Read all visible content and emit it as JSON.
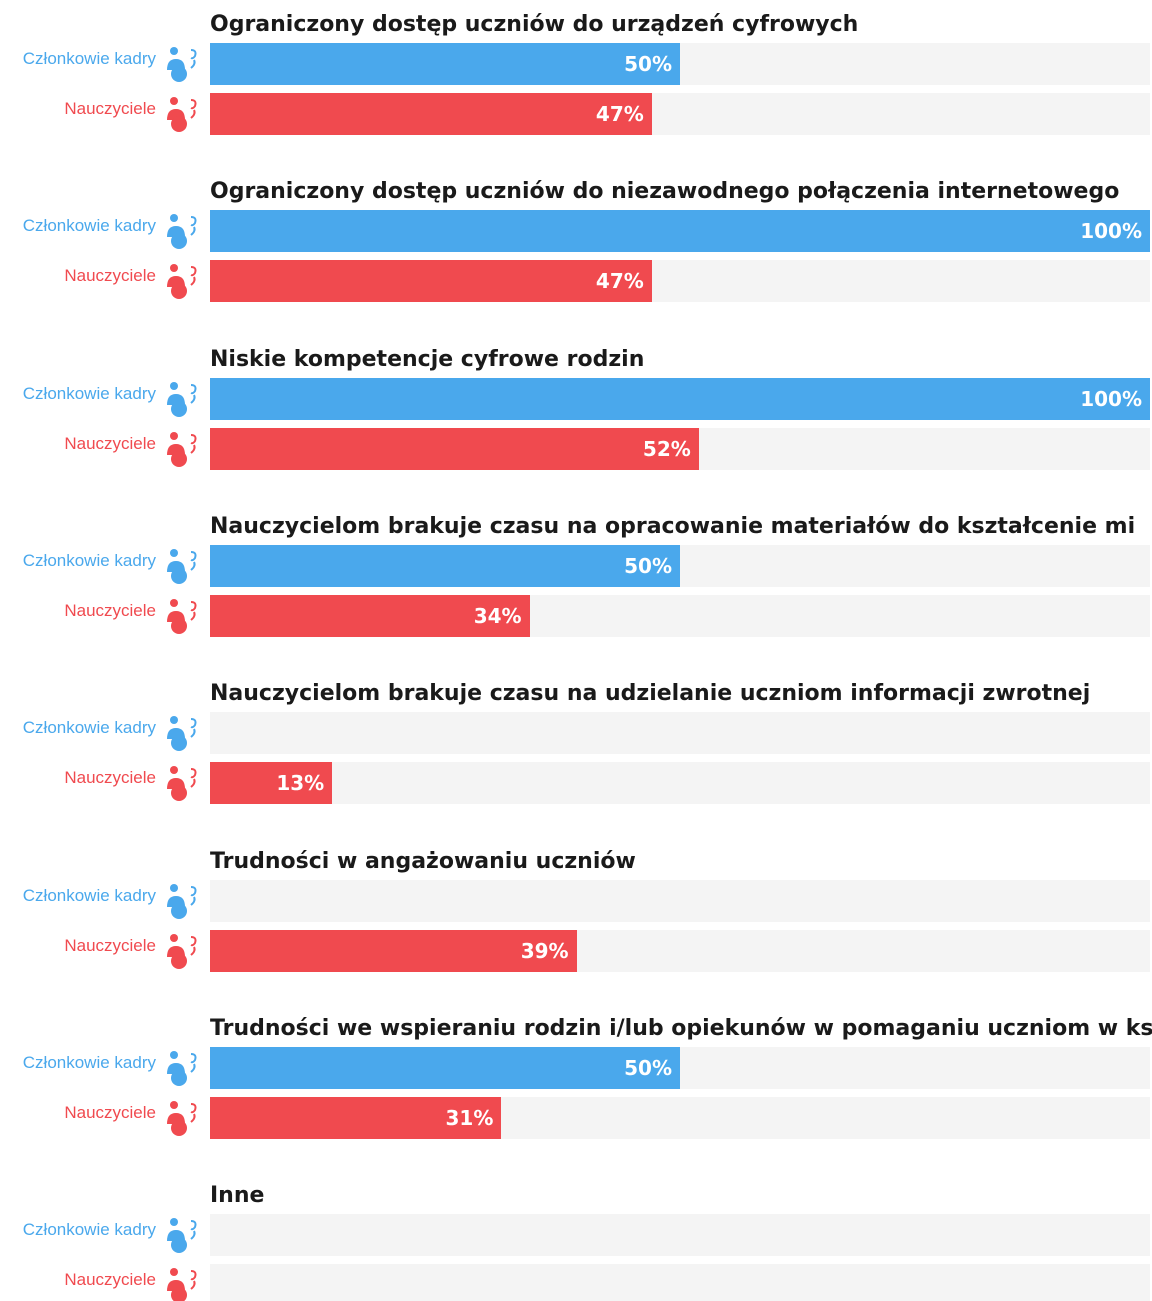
{
  "chart_data": {
    "type": "bar",
    "orientation": "horizontal",
    "xlim": [
      0,
      100
    ],
    "unit": "%",
    "series": [
      {
        "name": "Członkowie kadry",
        "color": "#4aa8ec",
        "icon": "group-person-icon"
      },
      {
        "name": "Nauczyciele",
        "color": "#f04a4f",
        "icon": "group-person-icon"
      }
    ],
    "categories": [
      "Ograniczony dostęp uczniów do urządzeń cyfrowych",
      "Ograniczony dostęp uczniów do niezawodnego połączenia internetowego",
      "Niskie kompetencje cyfrowe rodzin",
      "Nauczycielom brakuje czasu na opracowanie materiałów do kształcenie mi",
      "Nauczycielom brakuje czasu na udzielanie uczniom informacji zwrotnej",
      "Trudności w angażowaniu uczniów",
      "Trudności we wspieraniu rodzin i/lub opiekunów w pomaganiu uczniom w ks",
      "Inne"
    ],
    "values": {
      "Członkowie kadry": [
        50,
        100,
        100,
        50,
        0,
        0,
        50,
        0
      ],
      "Nauczyciele": [
        47,
        47,
        52,
        34,
        13,
        39,
        31,
        0
      ]
    },
    "value_labels": {
      "Członkowie kadry": [
        "50%",
        "100%",
        "100%",
        "50%",
        "",
        "",
        "50%",
        ""
      ],
      "Nauczyciele": [
        "47%",
        "47%",
        "52%",
        "34%",
        "13%",
        "39%",
        "31%",
        ""
      ]
    },
    "track_color": "#f4f4f4",
    "grid": false,
    "legend": "none"
  }
}
